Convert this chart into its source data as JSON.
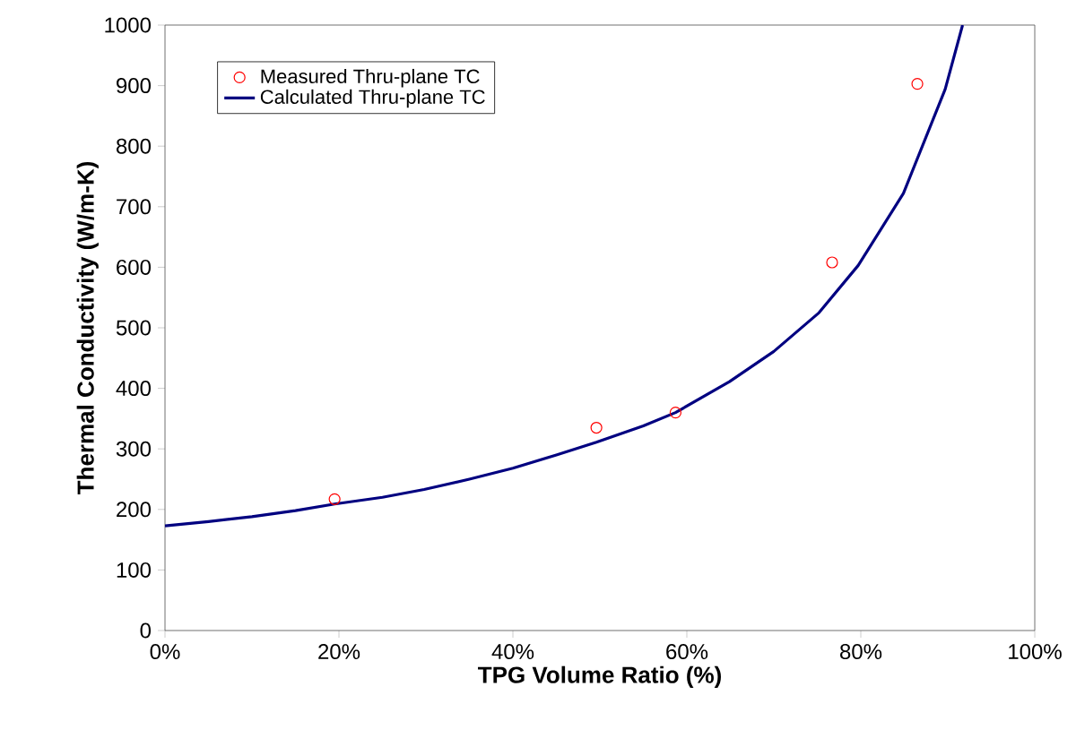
{
  "chart_data": {
    "type": "scatter",
    "xlabel": "TPG Volume Ratio (%)",
    "ylabel": "Thermal Conductivity (W/m-K)",
    "xlim": [
      0,
      100
    ],
    "ylim": [
      0,
      1000
    ],
    "xticks": [
      {
        "value": 0,
        "label": "0%"
      },
      {
        "value": 20,
        "label": "20%"
      },
      {
        "value": 40,
        "label": "40%"
      },
      {
        "value": 60,
        "label": "60%"
      },
      {
        "value": 80,
        "label": "80%"
      },
      {
        "value": 100,
        "label": "100%"
      }
    ],
    "yticks": [
      0,
      100,
      200,
      300,
      400,
      500,
      600,
      700,
      800,
      900,
      1000
    ],
    "legend": "top left",
    "grid": false,
    "series": [
      {
        "name": "Measured Thru-plane TC",
        "marker": "circle",
        "color": "#ff0000",
        "x": [
          19.5,
          49.6,
          58.7,
          76.7,
          86.5
        ],
        "values": [
          217,
          335,
          360,
          608,
          903
        ]
      },
      {
        "name": "Calculated Thru-plane TC",
        "type": "line",
        "marker": "none",
        "line_style": "solid",
        "color": "#000080",
        "x": [
          0,
          5,
          10,
          15,
          19.5,
          25,
          29.8,
          35,
          40,
          45,
          49.6,
          55,
          58.7,
          64.9,
          70,
          75.2,
          79.7,
          84.9,
          89.7,
          91.7
        ],
        "values": [
          173,
          180,
          188,
          198,
          209,
          220,
          233,
          250,
          268,
          290,
          311,
          338,
          360,
          411,
          461,
          525,
          603,
          722,
          894,
          1000
        ]
      }
    ]
  }
}
